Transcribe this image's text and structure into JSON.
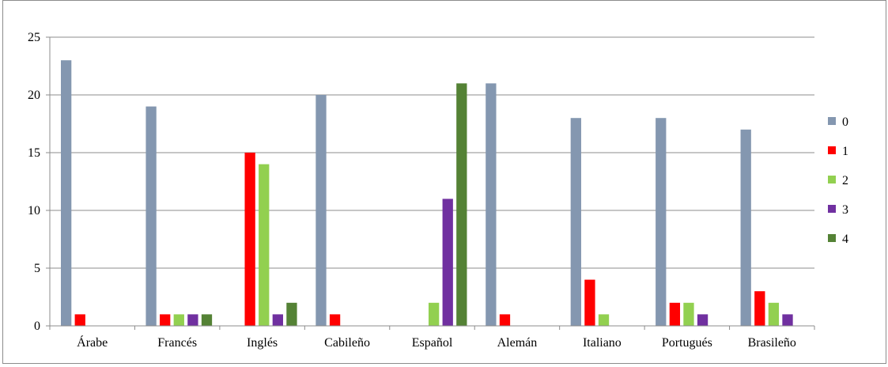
{
  "chart_data": {
    "type": "bar",
    "title": "",
    "xlabel": "",
    "ylabel": "",
    "categories": [
      "Árabe",
      "Francés",
      "Inglés",
      "Cabileño",
      "Español",
      "Alemán",
      "Italiano",
      "Portugués",
      "Brasileño"
    ],
    "series": [
      {
        "name": "0",
        "color": "#8497B0",
        "values": [
          23,
          19,
          0,
          20,
          0,
          21,
          18,
          18,
          17
        ]
      },
      {
        "name": "1",
        "color": "#FF0000",
        "values": [
          1,
          1,
          15,
          1,
          0,
          1,
          4,
          2,
          3
        ]
      },
      {
        "name": "2",
        "color": "#92D050",
        "values": [
          0,
          1,
          14,
          0,
          2,
          0,
          1,
          2,
          2
        ]
      },
      {
        "name": "3",
        "color": "#7030A0",
        "values": [
          0,
          1,
          1,
          0,
          11,
          0,
          0,
          1,
          1
        ]
      },
      {
        "name": "4",
        "color": "#548235",
        "values": [
          0,
          1,
          2,
          0,
          21,
          0,
          0,
          0,
          0
        ]
      }
    ],
    "ylim": [
      0,
      25
    ],
    "yticks": [
      0,
      5,
      10,
      15,
      20,
      25
    ],
    "grid": true,
    "legend": "right"
  }
}
